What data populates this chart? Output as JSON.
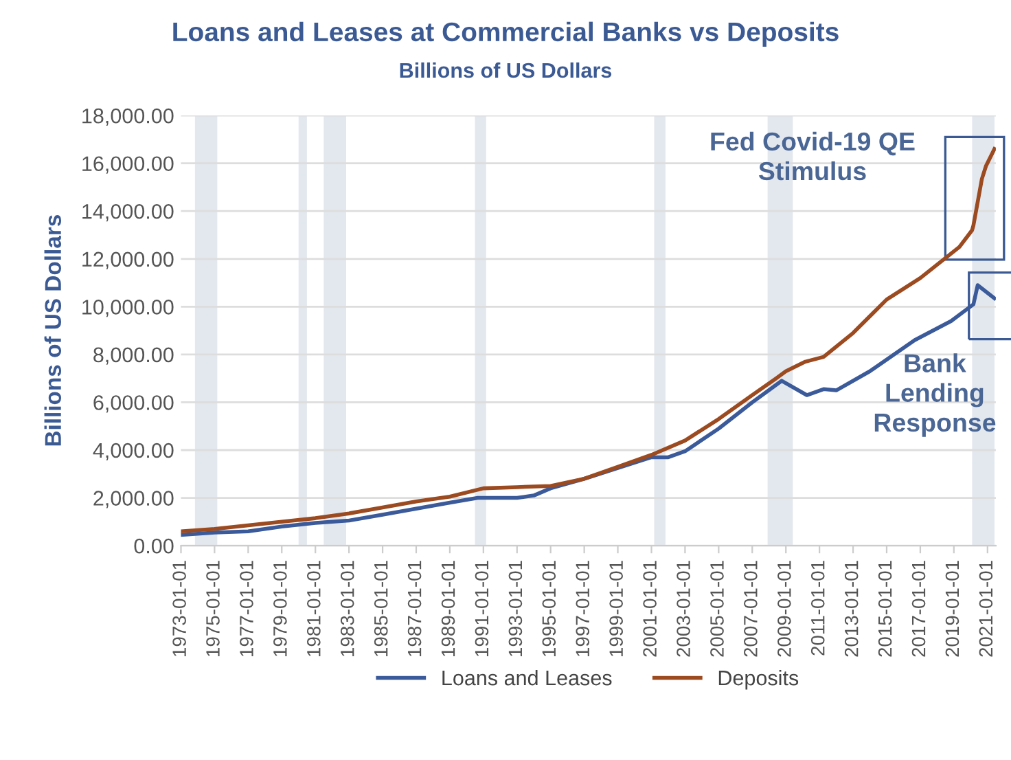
{
  "chart_data": {
    "type": "line",
    "title": "Loans and Leases at Commercial Banks vs Deposits",
    "subtitle": "Billions of US Dollars",
    "ylabel": "Billions of US Dollars",
    "series": [
      {
        "name": "Loans and Leases",
        "color": "#3b5a9a",
        "x": [
          "1973-01",
          "1975-01",
          "1977-01",
          "1979-01",
          "1981-01",
          "1983-01",
          "1985-01",
          "1987-01",
          "1989-01",
          "1990-09",
          "1993-01",
          "1994-01",
          "1995-01",
          "1997-01",
          "1999-01",
          "2001-01",
          "2002-01",
          "2003-01",
          "2005-01",
          "2007-01",
          "2008-10",
          "2010-04",
          "2011-04",
          "2012-01",
          "2014-01",
          "2016-09",
          "2018-11",
          "2020-03",
          "2020-06",
          "2021-06"
        ],
        "values": [
          450,
          550,
          600,
          800,
          950,
          1050,
          1300,
          1550,
          1800,
          2000,
          2000,
          2100,
          2400,
          2800,
          3250,
          3700,
          3700,
          3950,
          4900,
          6000,
          6900,
          6300,
          6550,
          6500,
          7300,
          8600,
          9400,
          10100,
          10900,
          10350
        ]
      },
      {
        "name": "Deposits",
        "color": "#9c4a1f",
        "x": [
          "1973-01",
          "1975-01",
          "1977-01",
          "1979-01",
          "1981-01",
          "1983-01",
          "1985-01",
          "1987-01",
          "1989-01",
          "1991-01",
          "1993-01",
          "1995-01",
          "1997-01",
          "1999-01",
          "2001-01",
          "2003-01",
          "2005-01",
          "2007-01",
          "2008-06",
          "2009-01",
          "2010-03",
          "2011-04",
          "2013-01",
          "2015-01",
          "2017-01",
          "2019-05",
          "2020-02",
          "2020-03",
          "2020-09",
          "2020-12",
          "2021-06"
        ],
        "values": [
          600,
          700,
          850,
          1000,
          1150,
          1350,
          1600,
          1850,
          2050,
          2400,
          2450,
          2500,
          2800,
          3300,
          3800,
          4400,
          5300,
          6300,
          7000,
          7300,
          7700,
          7900,
          8900,
          10300,
          11200,
          12500,
          13200,
          13400,
          15350,
          15900,
          16600
        ]
      }
    ],
    "xlim": [
      "1973-01-01",
      "2021-07-01"
    ],
    "xticks": [
      "1973-01-01",
      "1975-01-01",
      "1977-01-01",
      "1979-01-01",
      "1981-01-01",
      "1983-01-01",
      "1985-01-01",
      "1987-01-01",
      "1989-01-01",
      "1991-01-01",
      "1993-01-01",
      "1995-01-01",
      "1997-01-01",
      "1999-01-01",
      "2001-01-01",
      "2003-01-01",
      "2005-01-01",
      "2007-01-01",
      "2009-01-01",
      "2011-01-01",
      "2013-01-01",
      "2015-01-01",
      "2017-01-01",
      "2019-01-01",
      "2021-01-01"
    ],
    "ylim": [
      0,
      18000
    ],
    "yticks": [
      {
        "value": 0,
        "label": "0.00"
      },
      {
        "value": 2000,
        "label": "2,000.00"
      },
      {
        "value": 4000,
        "label": "4,000.00"
      },
      {
        "value": 6000,
        "label": "6,000.00"
      },
      {
        "value": 8000,
        "label": "8,000.00"
      },
      {
        "value": 10000,
        "label": "10,000.00"
      },
      {
        "value": 12000,
        "label": "12,000.00"
      },
      {
        "value": 14000,
        "label": "14,000.00"
      },
      {
        "value": 16000,
        "label": "16,000.00"
      },
      {
        "value": 18000,
        "label": "18,000.00"
      }
    ],
    "bands": [
      {
        "axis": "x",
        "from": "1973-11-01",
        "to": "1975-03-01",
        "color": "#e3e8ef"
      },
      {
        "axis": "x",
        "from": "1980-01-01",
        "to": "1980-07-01",
        "color": "#e3e8ef"
      },
      {
        "axis": "x",
        "from": "1981-07-01",
        "to": "1982-11-01",
        "color": "#e3e8ef"
      },
      {
        "axis": "x",
        "from": "1990-07-01",
        "to": "1991-03-01",
        "color": "#e3e8ef"
      },
      {
        "axis": "x",
        "from": "2001-03-01",
        "to": "2001-11-01",
        "color": "#e3e8ef"
      },
      {
        "axis": "x",
        "from": "2007-12-01",
        "to": "2009-06-01",
        "color": "#e3e8ef"
      },
      {
        "axis": "x",
        "from": "2020-02-01",
        "to": "2021-06-01",
        "color": "#e3e8ef"
      }
    ],
    "annotations": [
      "Fed Covid-19 QE Stimulus",
      "Bank Lending Response"
    ],
    "grid": "y",
    "legend": "bottom",
    "line_style": "solid"
  }
}
